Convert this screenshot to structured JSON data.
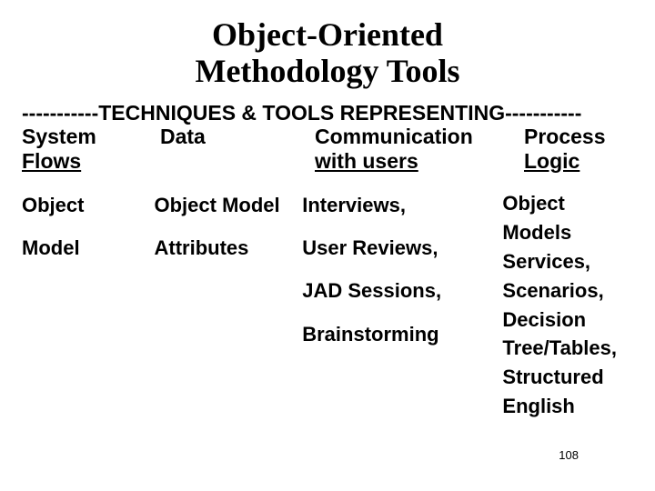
{
  "title_line1": "Object-Oriented",
  "title_line2": "Methodology Tools",
  "banner": "-----------TECHNIQUES & TOOLS REPRESENTING-----------",
  "headers": {
    "col1_line1": "System",
    "col1_line2": "Flows",
    "col2_line1": "Data",
    "col2_line2": "",
    "col3_line1": "Communication",
    "col3_line2": " with users",
    "col4_line1": "Process",
    "col4_line2": " Logic"
  },
  "body": {
    "col1": [
      "Object",
      "Model"
    ],
    "col2": [
      "Object Model",
      "Attributes"
    ],
    "col3": [
      "Interviews,",
      "User Reviews,",
      "JAD Sessions,",
      "Brainstorming"
    ],
    "col4": [
      "Object",
      "Models",
      "Services,",
      "Scenarios,",
      "Decision",
      "Tree/Tables,",
      "Structured",
      "English"
    ]
  },
  "page_number": "108",
  "colors": {
    "background": "#ffffff",
    "text": "#000000"
  }
}
